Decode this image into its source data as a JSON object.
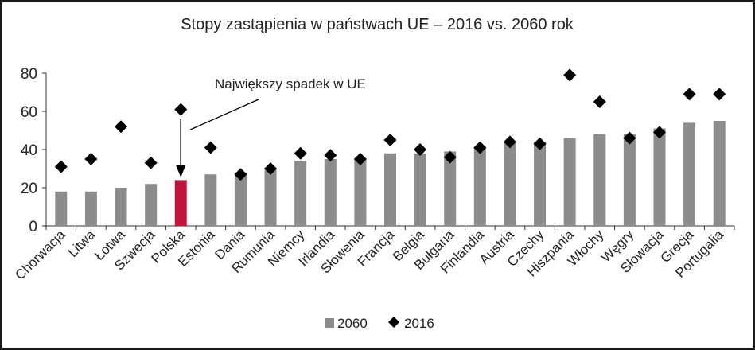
{
  "chart_data": {
    "type": "bar",
    "title": "Stopy zastąpienia w państwach UE – 2016 vs. 2060 rok",
    "xlabel": "",
    "ylabel": "",
    "ylim": [
      0,
      80
    ],
    "yticks": [
      "0",
      "20",
      "40",
      "60",
      "80"
    ],
    "categories": [
      "Chorwacja",
      "Litwa",
      "Łotwa",
      "Szwecja",
      "Polska",
      "Estonia",
      "Dania",
      "Rumunia",
      "Niemcy",
      "Irlandia",
      "Słowenia",
      "Francja",
      "Belgia",
      "Bułgaria",
      "Finlandia",
      "Austria",
      "Czechy",
      "Hiszpania",
      "Włochy",
      "Węgry",
      "Słowacja",
      "Grecja",
      "Portugalia"
    ],
    "series": [
      {
        "name": "2060",
        "mark": "bar",
        "values": [
          18,
          18,
          20,
          22,
          24,
          27,
          28,
          30,
          34,
          35,
          35,
          38,
          38,
          39,
          41,
          44,
          44,
          46,
          48,
          48,
          51,
          54,
          55
        ]
      },
      {
        "name": "2016",
        "mark": "diamond",
        "values": [
          31,
          35,
          52,
          33,
          61,
          41,
          27,
          30,
          38,
          37,
          35,
          45,
          40,
          36,
          41,
          44,
          43,
          79,
          65,
          46,
          49,
          69,
          69
        ]
      }
    ],
    "highlight": {
      "category": "Polska",
      "color": "#c0153a"
    },
    "bar_color": "#8c8c8c",
    "marker_color": "#000000",
    "annotation": {
      "text": "Największy spadek w UE",
      "target": "Polska"
    },
    "grid": false,
    "legend_position": "bottom"
  }
}
